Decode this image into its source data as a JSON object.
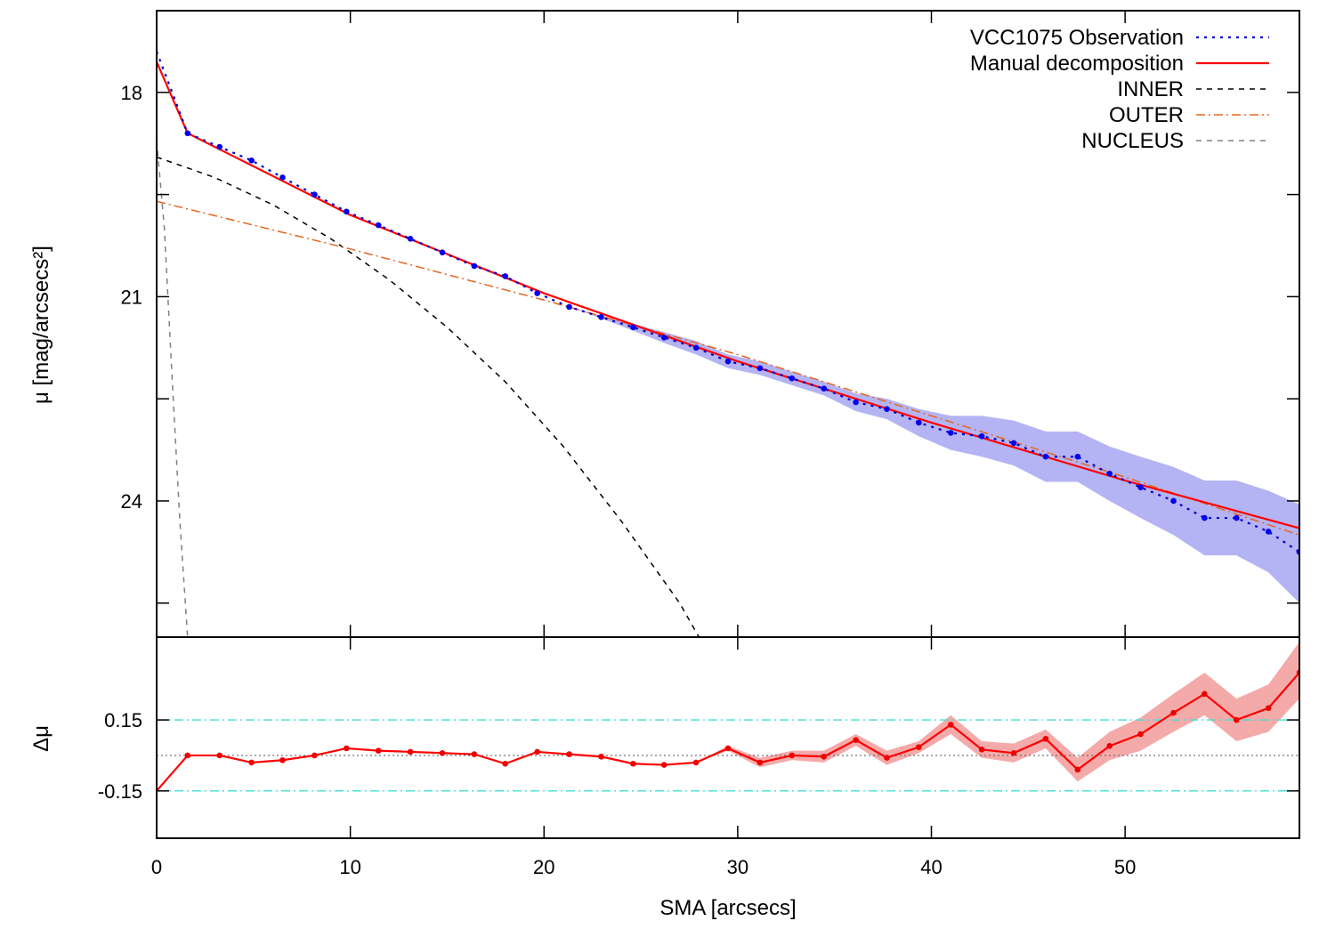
{
  "chart_data": [
    {
      "type": "line",
      "panel": "profile",
      "xlabel": "",
      "ylabel": "μ [mag/arcsecs²]",
      "xlim": [
        0,
        59
      ],
      "ylim": [
        26.0,
        16.8
      ],
      "y_inverted": true,
      "yticks": [
        18,
        21,
        24
      ],
      "grid": false,
      "legend_position": "top-right",
      "series": [
        {
          "name": "VCC1075 Observation",
          "style": "dotted",
          "color": "#0000cc",
          "markers": true,
          "x": [
            0,
            1.6,
            3.25,
            4.9,
            6.5,
            8.15,
            9.8,
            11.45,
            13.1,
            14.75,
            16.4,
            18.0,
            19.65,
            21.3,
            22.95,
            24.6,
            26.2,
            27.85,
            29.5,
            31.15,
            32.8,
            34.45,
            36.1,
            37.7,
            39.35,
            41.0,
            42.6,
            44.25,
            45.9,
            47.55,
            49.2,
            50.8,
            52.5,
            54.1,
            55.75,
            57.4,
            59.0
          ],
          "y": [
            17.4,
            18.6,
            18.8,
            19.0,
            19.25,
            19.5,
            19.75,
            19.95,
            20.15,
            20.35,
            20.55,
            20.7,
            20.95,
            21.15,
            21.3,
            21.45,
            21.6,
            21.75,
            21.95,
            22.05,
            22.2,
            22.35,
            22.55,
            22.65,
            22.85,
            23.0,
            23.05,
            23.15,
            23.35,
            23.35,
            23.6,
            23.8,
            24.0,
            24.25,
            24.25,
            24.45,
            24.75
          ],
          "error_band": {
            "lower": [
              17.4,
              18.6,
              18.8,
              19.0,
              19.25,
              19.5,
              19.75,
              19.95,
              20.15,
              20.35,
              20.55,
              20.7,
              20.95,
              21.15,
              21.28,
              21.4,
              21.52,
              21.65,
              21.85,
              21.95,
              22.1,
              22.25,
              22.42,
              22.5,
              22.65,
              22.75,
              22.75,
              22.82,
              22.98,
              22.98,
              23.2,
              23.35,
              23.5,
              23.7,
              23.7,
              23.85,
              24.05
            ],
            "upper": [
              17.4,
              18.6,
              18.8,
              19.0,
              19.25,
              19.5,
              19.75,
              19.95,
              20.15,
              20.35,
              20.55,
              20.7,
              20.95,
              21.15,
              21.32,
              21.5,
              21.68,
              21.85,
              22.05,
              22.15,
              22.3,
              22.45,
              22.68,
              22.8,
              23.05,
              23.25,
              23.35,
              23.48,
              23.72,
              23.72,
              24.0,
              24.25,
              24.5,
              24.8,
              24.8,
              25.05,
              25.5
            ]
          }
        },
        {
          "name": "Manual decomposition",
          "style": "solid",
          "color": "#ff0000",
          "x": [
            0,
            1.6,
            10,
            20,
            30,
            40,
            50,
            59
          ],
          "y": [
            17.55,
            18.6,
            19.8,
            20.95,
            21.95,
            22.85,
            23.7,
            24.4
          ]
        },
        {
          "name": "INNER",
          "style": "dashed",
          "color": "#000000",
          "x": [
            0,
            3,
            6,
            9,
            12,
            15,
            18,
            21,
            24,
            27,
            28
          ],
          "y": [
            18.95,
            19.25,
            19.65,
            20.15,
            20.75,
            21.45,
            22.25,
            23.2,
            24.3,
            25.5,
            26.0
          ]
        },
        {
          "name": "OUTER",
          "style": "dash-dot",
          "color": "#e8641e",
          "x": [
            0,
            10,
            20,
            30,
            40,
            50,
            59
          ],
          "y": [
            19.6,
            20.3,
            21.05,
            21.85,
            22.75,
            23.65,
            24.5
          ]
        },
        {
          "name": "NUCLEUS",
          "style": "dashed",
          "color": "#808080",
          "x": [
            0,
            0.4,
            0.8,
            1.2,
            1.6
          ],
          "y": [
            18.7,
            20.0,
            22.2,
            24.3,
            26.0
          ]
        }
      ]
    },
    {
      "type": "line",
      "panel": "residuals",
      "xlabel": "SMA [arcsecs]",
      "ylabel": "Δμ",
      "xlim": [
        0,
        59
      ],
      "ylim": [
        -0.35,
        0.5
      ],
      "xticks": [
        0,
        10,
        20,
        30,
        40,
        50
      ],
      "yticks": [
        0.15,
        -0.15
      ],
      "yticklabels": [
        "0.15",
        "-0.15"
      ],
      "reference_lines": [
        {
          "y": 0.15,
          "style": "dash-dot",
          "color": "#40e0d0"
        },
        {
          "y": -0.15,
          "style": "dash-dot",
          "color": "#40e0d0"
        },
        {
          "y": 0.0,
          "style": "dotted",
          "color": "#555555"
        }
      ],
      "series": [
        {
          "style": "solid",
          "color": "#ff0000",
          "markers": true,
          "x": [
            0,
            1.6,
            3.25,
            4.9,
            6.5,
            8.15,
            9.8,
            11.45,
            13.1,
            14.75,
            16.4,
            18.0,
            19.65,
            21.3,
            22.95,
            24.6,
            26.2,
            27.85,
            29.5,
            31.15,
            32.8,
            34.45,
            36.1,
            37.7,
            39.35,
            41.0,
            42.6,
            44.25,
            45.9,
            47.55,
            49.2,
            50.8,
            52.5,
            54.1,
            55.75,
            57.4,
            59.0
          ],
          "y": [
            -0.15,
            0.0,
            0.0,
            -0.03,
            -0.02,
            0.0,
            0.03,
            0.02,
            0.015,
            0.01,
            0.005,
            -0.035,
            0.015,
            0.005,
            -0.005,
            -0.035,
            -0.04,
            -0.03,
            0.03,
            -0.03,
            0.0,
            -0.005,
            0.065,
            -0.01,
            0.035,
            0.13,
            0.025,
            0.01,
            0.07,
            -0.06,
            0.04,
            0.09,
            0.18,
            0.26,
            0.15,
            0.2,
            0.35
          ],
          "error_band": {
            "lower": [
              -0.15,
              0.0,
              0.0,
              -0.03,
              -0.02,
              0.0,
              0.03,
              0.02,
              0.015,
              0.01,
              0.005,
              -0.035,
              0.015,
              0.005,
              -0.005,
              -0.035,
              -0.04,
              -0.03,
              0.02,
              -0.05,
              -0.02,
              -0.03,
              0.04,
              -0.04,
              0.01,
              0.09,
              -0.01,
              -0.03,
              0.03,
              -0.11,
              -0.02,
              0.02,
              0.1,
              0.17,
              0.06,
              0.1,
              0.24
            ],
            "upper": [
              -0.15,
              0.0,
              0.0,
              -0.03,
              -0.02,
              0.0,
              0.03,
              0.02,
              0.015,
              0.01,
              0.005,
              -0.035,
              0.015,
              0.005,
              -0.005,
              -0.035,
              -0.04,
              -0.03,
              0.04,
              -0.01,
              0.02,
              0.02,
              0.09,
              0.02,
              0.06,
              0.17,
              0.06,
              0.05,
              0.11,
              -0.01,
              0.1,
              0.16,
              0.26,
              0.35,
              0.24,
              0.3,
              0.48
            ]
          }
        }
      ]
    }
  ]
}
